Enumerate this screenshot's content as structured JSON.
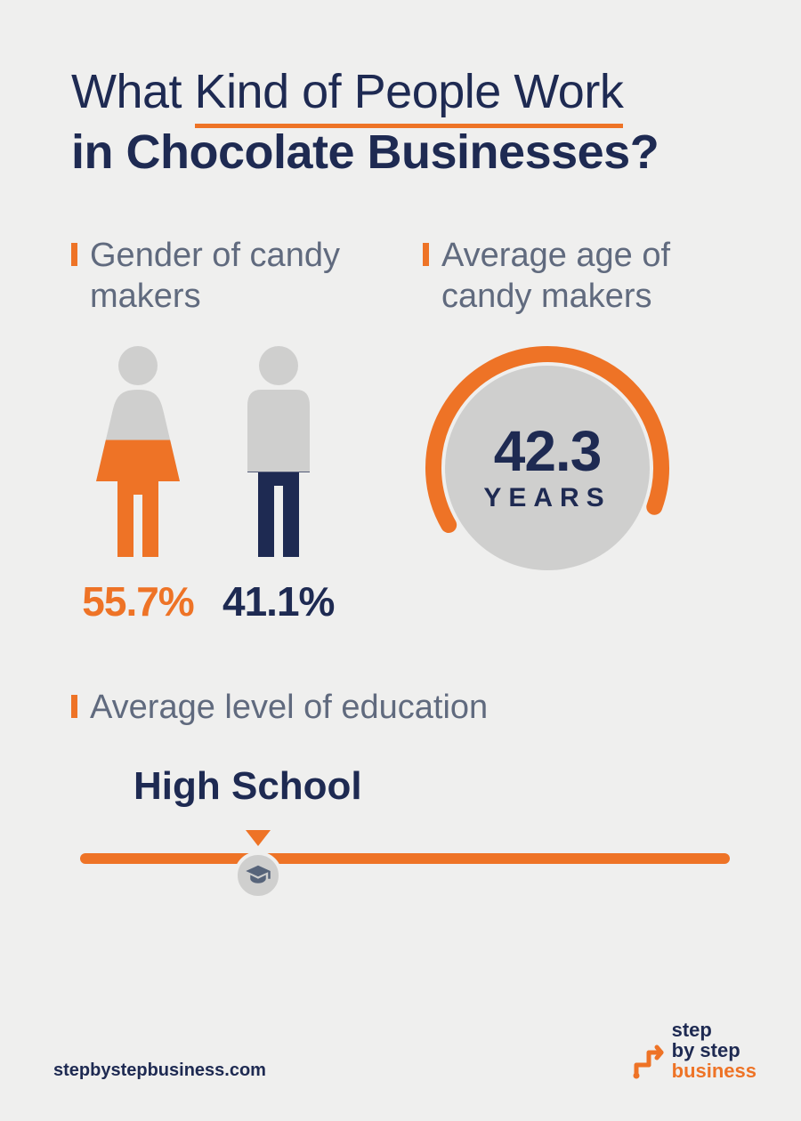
{
  "colors": {
    "bg": "#efefee",
    "navy": "#1e2a52",
    "orange": "#ee7326",
    "gray": "#cfcfce",
    "subtext": "#606a7e"
  },
  "title": {
    "line1_pre": "What ",
    "line1_underlined": "Kind of People Work",
    "line2": "in Chocolate Businesses?"
  },
  "gender": {
    "heading": "Gender of candy makers",
    "female": {
      "pct": "55.7%",
      "fill_pct": 55.7,
      "fill_color": "#ee7326",
      "base_color": "#cfcfce",
      "text_color": "#ee7326"
    },
    "male": {
      "pct": "41.1%",
      "fill_pct": 41.1,
      "fill_color": "#1e2a52",
      "base_color": "#cfcfce",
      "text_color": "#1e2a52"
    }
  },
  "age": {
    "heading": "Average age of candy makers",
    "value": "42.3",
    "unit": "YEARS",
    "circle_bg": "#cfcfce",
    "arc_color": "#ee7326",
    "arc_start_deg": 130,
    "arc_end_deg": 30,
    "arc_width": 18
  },
  "education": {
    "heading": "Average level of education",
    "level": "High School",
    "slider_pos_pct": 28,
    "track_color": "#ee7326",
    "knob_bg": "#cfcfce",
    "icon_color": "#57647a"
  },
  "footer": {
    "url": "stepbystepbusiness.com",
    "logo_l1": "step",
    "logo_l2": "by step",
    "logo_l3": "business"
  }
}
